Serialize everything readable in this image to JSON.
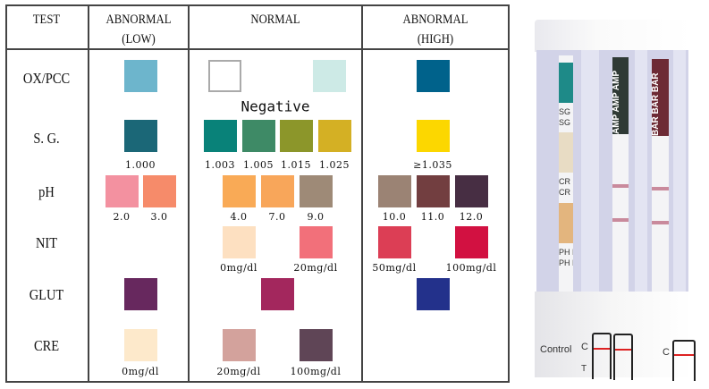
{
  "header": {
    "test": "TEST",
    "low": [
      "ABNORMAL",
      "(LOW)"
    ],
    "normal": "NORMAL",
    "high": [
      "ABNORMAL",
      "(HIGH)"
    ]
  },
  "negative_label": "Negative",
  "rows": [
    {
      "name": "OX/PCC",
      "low": [
        {
          "color": "#6db5cc",
          "label": ""
        }
      ],
      "normal": [
        {
          "color": "#ffffff",
          "label": ""
        },
        {
          "color": "#cdeae6",
          "label": ""
        }
      ],
      "high": [
        {
          "color": "#00628b",
          "label": ""
        }
      ]
    },
    {
      "name": "S. G.",
      "low": [
        {
          "color": "#1b6777",
          "label": "1.000"
        }
      ],
      "normal": [
        {
          "color": "#098279",
          "label": "1.003"
        },
        {
          "color": "#3e8a66",
          "label": "1.005"
        },
        {
          "color": "#8c962a",
          "label": "1.015"
        },
        {
          "color": "#d4b024",
          "label": "1.025"
        }
      ],
      "high": [
        {
          "color": "#fcd700",
          "label": "≥1.035"
        }
      ]
    },
    {
      "name": "pH",
      "low": [
        {
          "color": "#f391a0",
          "label": "2.0"
        },
        {
          "color": "#f68b6a",
          "label": "3.0"
        }
      ],
      "normal": [
        {
          "color": "#f9aa56",
          "label": "4.0"
        },
        {
          "color": "#f8a65a",
          "label": "7.0"
        },
        {
          "color": "#9e8a77",
          "label": "9.0"
        }
      ],
      "high": [
        {
          "color": "#9b8374",
          "label": "10.0"
        },
        {
          "color": "#723e40",
          "label": "11.0"
        },
        {
          "color": "#472e43",
          "label": "12.0"
        }
      ]
    },
    {
      "name": "NIT",
      "low": [],
      "normal": [
        {
          "color": "#fde0c1",
          "label": "0mg/dl"
        },
        {
          "color": "#f2707a",
          "label": "20mg/dl"
        }
      ],
      "high": [
        {
          "color": "#dc3e55",
          "label": "50mg/dl"
        },
        {
          "color": "#d21141",
          "label": "100mg/dl"
        }
      ]
    },
    {
      "name": "GLUT",
      "low": [
        {
          "color": "#67285e",
          "label": ""
        }
      ],
      "normal": [
        {
          "color": "#a3275d",
          "label": ""
        }
      ],
      "high": [
        {
          "color": "#23318b",
          "label": ""
        }
      ]
    },
    {
      "name": "CRE",
      "low": [
        {
          "color": "#fde9cb",
          "label": "0mg/dl"
        }
      ],
      "normal": [
        {
          "color": "#d3a29c",
          "label": "20mg/dl"
        },
        {
          "color": "#5f4556",
          "label": "100mg/dl"
        }
      ],
      "high": []
    }
  ],
  "photo": {
    "strip_labels": [
      "SG SG",
      "SG S",
      "CR CR",
      "CR CR",
      "PH P",
      "PH PH"
    ],
    "amp_label": "AMP AMP AMP",
    "bar_label": "BAR BAR BAR",
    "control_label": "Control",
    "c_label": "C",
    "t_label": "T",
    "pad_colors": [
      "#1e8a88",
      "#e8dcc4",
      "#e3b57e"
    ],
    "amp_color": "#2f3a35",
    "bar_color": "#6d2a35",
    "line_color": "#c98a9c"
  }
}
